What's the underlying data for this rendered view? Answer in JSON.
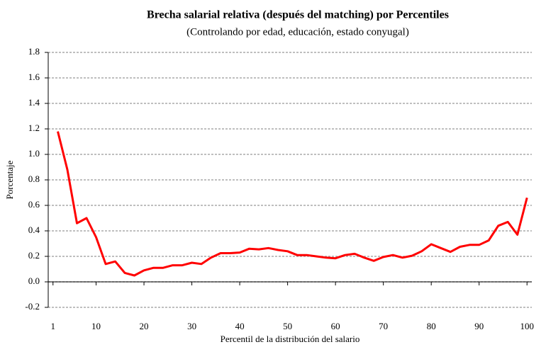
{
  "chart_data": {
    "type": "line",
    "title": "Brecha salarial relativa (después del matching) por Percentiles",
    "subtitle": "(Controlando por edad, educación, estado conyugal)",
    "x_label": "Percentil de la distribución del salario",
    "y_label": "Porcentaje",
    "x": [
      2,
      4,
      6,
      8,
      10,
      12,
      14,
      16,
      18,
      20,
      22,
      24,
      26,
      28,
      30,
      32,
      34,
      36,
      38,
      40,
      42,
      44,
      46,
      48,
      50,
      52,
      54,
      56,
      58,
      60,
      62,
      64,
      66,
      68,
      70,
      72,
      74,
      76,
      78,
      80,
      82,
      84,
      86,
      88,
      90,
      92,
      94,
      96,
      98,
      100
    ],
    "series": [
      {
        "name": "Brecha",
        "color": "#ff0000",
        "values": [
          1.18,
          0.88,
          0.46,
          0.5,
          0.35,
          0.14,
          0.16,
          0.07,
          0.05,
          0.09,
          0.11,
          0.11,
          0.13,
          0.13,
          0.15,
          0.14,
          0.19,
          0.225,
          0.225,
          0.23,
          0.26,
          0.255,
          0.265,
          0.25,
          0.24,
          0.21,
          0.21,
          0.2,
          0.19,
          0.185,
          0.21,
          0.22,
          0.19,
          0.165,
          0.195,
          0.21,
          0.19,
          0.205,
          0.24,
          0.295,
          0.265,
          0.235,
          0.275,
          0.29,
          0.29,
          0.325,
          0.44,
          0.47,
          0.37,
          0.66
        ]
      }
    ],
    "xlim": [
      0,
      101
    ],
    "xticks": [
      1,
      10,
      20,
      30,
      40,
      50,
      60,
      70,
      80,
      90,
      100
    ],
    "ylim": [
      -0.2,
      1.8
    ],
    "yticks": [
      -0.2,
      {
        "value": 0,
        "label": "0.0"
      },
      0.2,
      0.4,
      0.6,
      0.8,
      {
        "value": 1,
        "label": "1.0"
      },
      1.2,
      1.4,
      1.6,
      1.8
    ],
    "grid": true
  }
}
